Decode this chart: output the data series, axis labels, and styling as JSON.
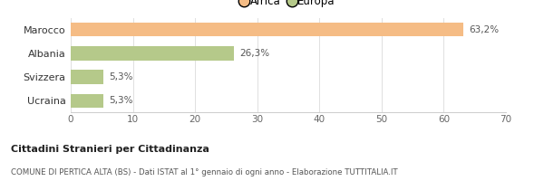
{
  "categories": [
    "Marocco",
    "Albania",
    "Svizzera",
    "Ucraina"
  ],
  "values": [
    63.2,
    26.3,
    5.3,
    5.3
  ],
  "labels": [
    "63,2%",
    "26,3%",
    "5,3%",
    "5,3%"
  ],
  "colors": [
    "#f5bc85",
    "#b5c98a",
    "#b5c98a",
    "#b5c98a"
  ],
  "legend": [
    {
      "label": "Africa",
      "color": "#f5bc85"
    },
    {
      "label": "Europa",
      "color": "#b5c98a"
    }
  ],
  "xlim": [
    0,
    70
  ],
  "xticks": [
    0,
    10,
    20,
    30,
    40,
    50,
    60,
    70
  ],
  "title_bold": "Cittadini Stranieri per Cittadinanza",
  "subtitle": "COMUNE DI PERTICA ALTA (BS) - Dati ISTAT al 1° gennaio di ogni anno - Elaborazione TUTTITALIA.IT",
  "background_color": "#ffffff"
}
